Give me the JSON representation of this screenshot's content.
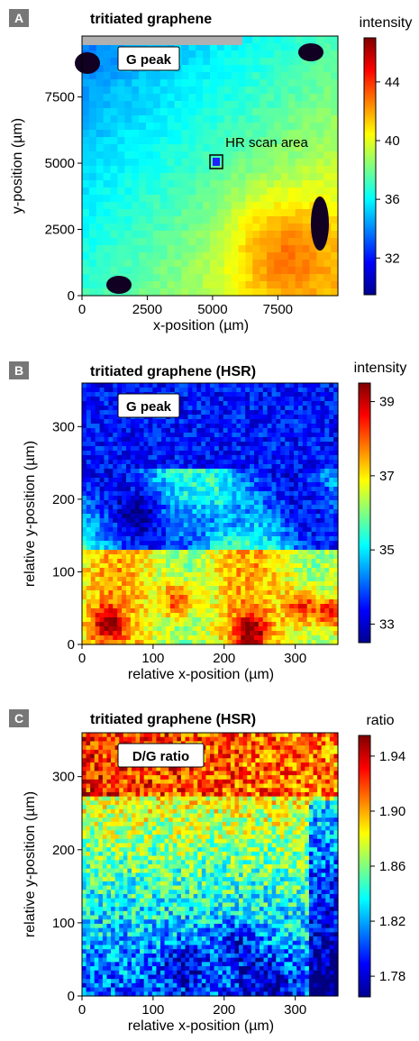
{
  "chart_data": [
    {
      "type": "heatmap",
      "panel_label": "A",
      "title": "tritiated graphene",
      "box_label": "G peak",
      "annotation": "HR scan area",
      "xlabel": "x-position  (µm)",
      "ylabel": "y-position  (µm)",
      "xlim": [
        0,
        9800
      ],
      "ylim": [
        0,
        9800
      ],
      "xticks": [
        0,
        2500,
        5000,
        7500
      ],
      "yticks": [
        0,
        2500,
        5000,
        7500
      ],
      "colorbar": {
        "title": "intensity",
        "range": [
          29.5,
          47
        ],
        "ticks": [
          32,
          36,
          40,
          44
        ]
      }
    },
    {
      "type": "heatmap",
      "panel_label": "B",
      "title": "tritiated graphene (HSR)",
      "box_label": "G peak",
      "xlabel": "relative x-position  (µm)",
      "ylabel": "relative y-position  (µm)",
      "xlim": [
        0,
        360
      ],
      "ylim": [
        0,
        360
      ],
      "xticks": [
        0,
        100,
        200,
        300
      ],
      "yticks": [
        0,
        100,
        200,
        300
      ],
      "colorbar": {
        "title": "intensity",
        "range": [
          32.5,
          39.5
        ],
        "ticks": [
          33,
          35,
          37,
          39
        ]
      }
    },
    {
      "type": "heatmap",
      "panel_label": "C",
      "title": "tritiated graphene (HSR)",
      "box_label": "D/G ratio",
      "xlabel": "relative x-position  (µm)",
      "ylabel": "relative y-position  (µm)",
      "xlim": [
        0,
        360
      ],
      "ylim": [
        0,
        360
      ],
      "xticks": [
        0,
        100,
        200,
        300
      ],
      "yticks": [
        0,
        100,
        200,
        300
      ],
      "colorbar": {
        "title": "ratio",
        "range": [
          1.765,
          1.955
        ],
        "ticks": [
          "1.78",
          "1.82",
          "1.86",
          "1.90",
          "1.94"
        ]
      }
    }
  ]
}
